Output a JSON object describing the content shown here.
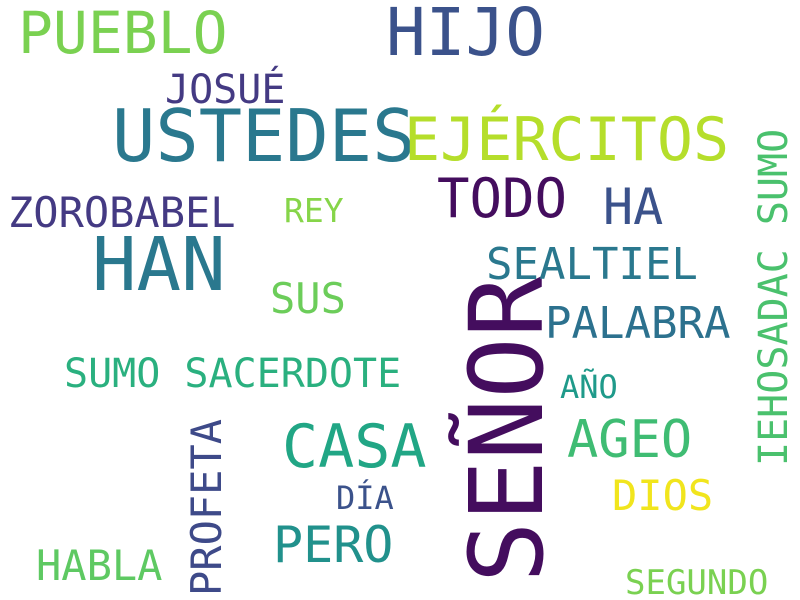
{
  "words": [
    {
      "id": "senor",
      "text": "SEÑOR",
      "color": "#440d5e"
    },
    {
      "id": "ustedes",
      "text": "USTEDES",
      "color": "#2a788e"
    },
    {
      "id": "han",
      "text": "HAN",
      "color": "#2a788e"
    },
    {
      "id": "ejercitos",
      "text": "EJÉRCITOS",
      "color": "#b5de2b"
    },
    {
      "id": "hijo",
      "text": "HIJO",
      "color": "#3b528b"
    },
    {
      "id": "pueblo",
      "text": "PUEBLO",
      "color": "#7ad151"
    },
    {
      "id": "casa",
      "text": "CASA",
      "color": "#21a685"
    },
    {
      "id": "todo",
      "text": "TODO",
      "color": "#440d5e"
    },
    {
      "id": "ageo",
      "text": "AGEO",
      "color": "#3fbc73"
    },
    {
      "id": "palabra",
      "text": "PALABRA",
      "color": "#2c718e"
    },
    {
      "id": "sealtiel",
      "text": "SEALTIEL",
      "color": "#2a788e"
    },
    {
      "id": "ha",
      "text": "HA",
      "color": "#3b528b"
    },
    {
      "id": "zorobabel",
      "text": "ZOROBABEL",
      "color": "#443a83"
    },
    {
      "id": "josue",
      "text": "JOSUÉ",
      "color": "#443a83"
    },
    {
      "id": "sumo-sacerdote",
      "text": "SUMO SACERDOTE",
      "color": "#2ab07f"
    },
    {
      "id": "pero",
      "text": "PERO",
      "color": "#21918c"
    },
    {
      "id": "profeta",
      "text": "PROFETA",
      "color": "#3e4a89"
    },
    {
      "id": "sus",
      "text": "SUS",
      "color": "#6ccd5a"
    },
    {
      "id": "ihosadac-sumo",
      "text": "IEHOSADAC SUMO",
      "color": "#4ac16d"
    },
    {
      "id": "dios",
      "text": "DIOS",
      "color": "#f1e51d"
    },
    {
      "id": "habla",
      "text": "HABLA",
      "color": "#5ec962"
    },
    {
      "id": "segundo",
      "text": "SEGUNDO",
      "color": "#7ad151"
    },
    {
      "id": "rey",
      "text": "REY",
      "color": "#86d549"
    },
    {
      "id": "ano",
      "text": "AÑO",
      "color": "#1f9a8a"
    },
    {
      "id": "dia",
      "text": "DÍA",
      "color": "#3b528b"
    }
  ]
}
